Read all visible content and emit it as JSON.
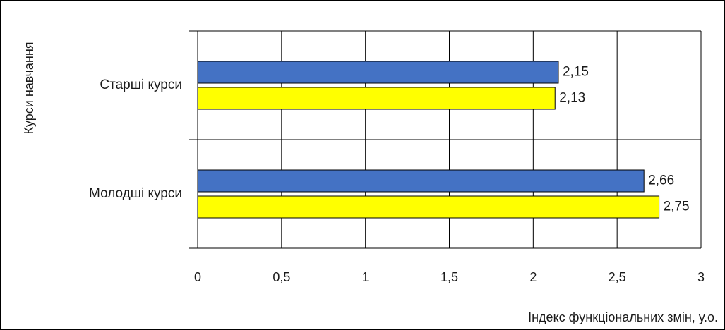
{
  "chart_data": {
    "type": "bar",
    "orientation": "horizontal",
    "categories": [
      "Старші курси",
      "Молодші курси"
    ],
    "series": [
      {
        "values": [
          2.15,
          2.66
        ],
        "data_labels": [
          "2,15",
          "2,66"
        ],
        "color": "#4472C4"
      },
      {
        "values": [
          2.13,
          2.75
        ],
        "data_labels": [
          "2,13",
          "2,75"
        ],
        "color": "#FFFF00"
      }
    ],
    "xlabel": "Індекс функціональних змін, у.о.",
    "ylabel": "Курси навчання",
    "xlim": [
      0,
      3
    ],
    "x_ticks": [
      0,
      0.5,
      1,
      1.5,
      2,
      2.5,
      3
    ],
    "x_tick_labels": [
      "0",
      "0,5",
      "1",
      "1,5",
      "2",
      "2,5",
      "3"
    ],
    "grid": true,
    "legend": "none"
  }
}
